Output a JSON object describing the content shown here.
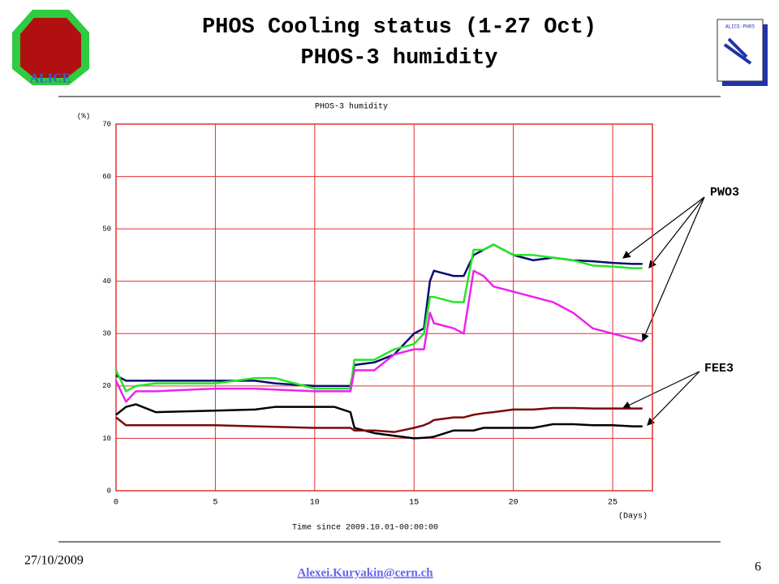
{
  "slide": {
    "title": "PHOS Cooling status (1-27 Oct)",
    "subtitle": "PHOS-3 humidity"
  },
  "chart_data": {
    "type": "line",
    "title": "PHOS-3 humidity",
    "y_unit": "(%)",
    "x_unit": "(Days)",
    "xlabel": "Time since 2009.10.01-00:00:00",
    "annotations": [
      "PWO3",
      "FEE3"
    ],
    "x": [
      0,
      0.5,
      1,
      2,
      5,
      7,
      8,
      10,
      11,
      11.8,
      12,
      13,
      14,
      15,
      15.5,
      15.8,
      16,
      17,
      17.5,
      18,
      18.5,
      19,
      20,
      21,
      22,
      23,
      24,
      25,
      26,
      26.5
    ],
    "series": [
      {
        "color": "#0a0a6e",
        "values": [
          22,
          21,
          21,
          21,
          21,
          21,
          20.5,
          20,
          20,
          20,
          24,
          24.5,
          26,
          30,
          31,
          40,
          42,
          41,
          41,
          45,
          46,
          47,
          45,
          44,
          44.5,
          44,
          43.8,
          43.5,
          43.3,
          43.3
        ]
      },
      {
        "color": "#22e622",
        "values": [
          23,
          19,
          20,
          20.5,
          20.5,
          21.5,
          21.5,
          19.5,
          19.5,
          19.5,
          25,
          25,
          27,
          28,
          30,
          37,
          37,
          36,
          36,
          46,
          46,
          47,
          45,
          45,
          44.5,
          44,
          43,
          42.8,
          42.5,
          42.5
        ]
      },
      {
        "color": "#ee22ee",
        "values": [
          21,
          17,
          19,
          19,
          19.5,
          19.5,
          19.3,
          19,
          19,
          19,
          23,
          23,
          26,
          27,
          27,
          34,
          32,
          31,
          30,
          42,
          41,
          39,
          38,
          37,
          36,
          34,
          31,
          30,
          29,
          28.5
        ]
      },
      {
        "color": "#000000",
        "values": [
          14.5,
          16,
          16.5,
          15,
          15.3,
          15.5,
          16,
          16,
          16,
          15,
          12,
          11,
          10.5,
          10,
          10.1,
          10.2,
          10.3,
          11.5,
          11.5,
          11.5,
          12,
          12,
          12,
          12,
          12.7,
          12.7,
          12.5,
          12.5,
          12.3,
          12.3
        ]
      },
      {
        "color": "#7a0a0a",
        "values": [
          14,
          12.5,
          12.5,
          12.5,
          12.5,
          12.3,
          12.2,
          12,
          12,
          12,
          11.5,
          11.5,
          11.2,
          12,
          12.5,
          13,
          13.5,
          14,
          14,
          14.5,
          14.8,
          15,
          15.5,
          15.5,
          15.8,
          15.8,
          15.7,
          15.7,
          15.7,
          15.7
        ]
      }
    ],
    "xlim": [
      0,
      27
    ],
    "xticks": [
      0,
      5,
      10,
      15,
      20,
      25
    ],
    "ylim": [
      0,
      70
    ],
    "yticks": [
      0,
      10,
      20,
      30,
      40,
      50,
      60,
      70
    ],
    "grid": true,
    "grid_color": "#e03030"
  },
  "footer": {
    "date": "27/10/2009",
    "email": "Alexei.Kuryakin@cern.ch",
    "page": "6"
  }
}
